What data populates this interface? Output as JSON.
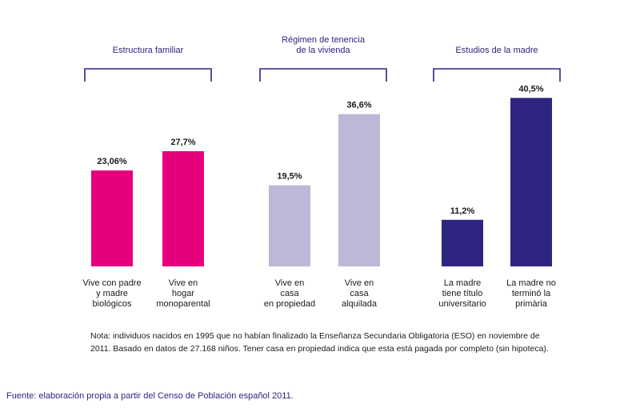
{
  "chart_data": {
    "type": "bar",
    "groups": [
      {
        "title": [
          "Estructura familiar"
        ],
        "categories": [
          [
            "Vive con padre",
            "y madre",
            "biológicos"
          ],
          [
            "Vive en",
            "hogar",
            "monoparental"
          ]
        ],
        "values": [
          23.06,
          27.7
        ],
        "labels": [
          "23,06%",
          "27,7%"
        ],
        "color": "#e6007e"
      },
      {
        "title": [
          "Régimen de tenencia",
          "de la vivienda"
        ],
        "categories": [
          [
            "Vive en",
            "casa",
            "en propiedad"
          ],
          [
            "Vive en",
            "casa",
            "alquilada"
          ]
        ],
        "values": [
          19.5,
          36.6
        ],
        "labels": [
          "19,5%",
          "36,6%"
        ],
        "color": "#bcb8d7"
      },
      {
        "title": [
          "Estudios de la madre"
        ],
        "categories": [
          [
            "La madre",
            "tiene título",
            "universitario"
          ],
          [
            "La madre no",
            "terminó la",
            "primària"
          ]
        ],
        "values": [
          11.2,
          40.5
        ],
        "labels": [
          "11,2%",
          "40,5%"
        ],
        "color": "#2e2580"
      }
    ]
  },
  "note": {
    "line1": "Nota: individuos nacidos en 1995 que no habían finalizado la Enseñanza Secundaria Obligatoria (ESO) en noviembre de",
    "line2": "2011. Basado en datos de 27.168 niños. Tener casa en propiedad indica que esta está pagada por completo (sin hipoteca)."
  },
  "source": "Fuente: elaboración propia a partir del Censo de Población español 2011."
}
